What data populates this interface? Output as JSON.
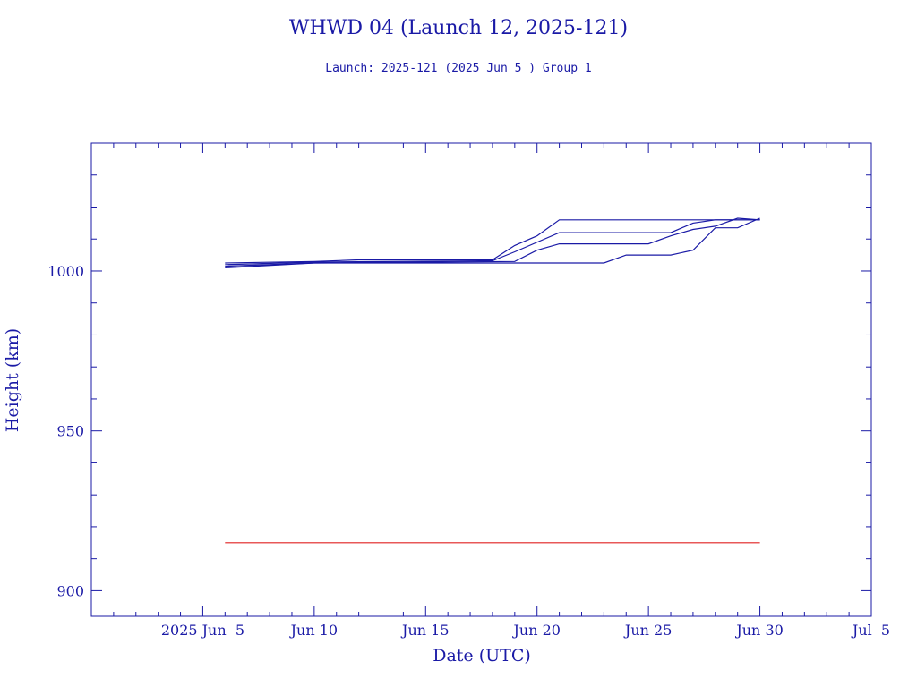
{
  "chart_data": {
    "type": "line",
    "title": "WHWD 04 (Launch 12, 2025-121)",
    "subtitle": "Launch: 2025-121  (2025 Jun  5 )  Group 1",
    "xlabel": "Date (UTC)",
    "ylabel": "Height (km)",
    "x_unit": "date (2025)",
    "xlim": [
      "2025-05-31",
      "2025-07-05"
    ],
    "ylim": [
      892,
      1040
    ],
    "x_ticks": [
      {
        "x": "2025-06-05",
        "label": "2025 Jun  5"
      },
      {
        "x": "2025-06-10",
        "label": "Jun 10"
      },
      {
        "x": "2025-06-15",
        "label": "Jun 15"
      },
      {
        "x": "2025-06-20",
        "label": "Jun 20"
      },
      {
        "x": "2025-06-25",
        "label": "Jun 25"
      },
      {
        "x": "2025-06-30",
        "label": "Jun 30"
      },
      {
        "x": "2025-07-05",
        "label": "Jul  5"
      }
    ],
    "y_ticks": [
      {
        "y": 900,
        "label": "900"
      },
      {
        "y": 950,
        "label": "950"
      },
      {
        "y": 1000,
        "label": "1000"
      }
    ],
    "grid": false,
    "series": [
      {
        "color": "#1a1aa6",
        "points": [
          [
            "2025-06-06",
            1002.5
          ],
          [
            "2025-06-10",
            1003.0
          ],
          [
            "2025-06-12",
            1003.5
          ],
          [
            "2025-06-18",
            1003.5
          ],
          [
            "2025-06-19",
            1008.0
          ],
          [
            "2025-06-20",
            1011.0
          ],
          [
            "2025-06-21",
            1016.0
          ],
          [
            "2025-06-29",
            1016.0
          ],
          [
            "2025-06-30",
            1016.0
          ]
        ]
      },
      {
        "color": "#1a1aa6",
        "points": [
          [
            "2025-06-06",
            1002.0
          ],
          [
            "2025-06-10",
            1002.8
          ],
          [
            "2025-06-18",
            1003.2
          ],
          [
            "2025-06-19",
            1006.0
          ],
          [
            "2025-06-21",
            1012.0
          ],
          [
            "2025-06-26",
            1012.0
          ],
          [
            "2025-06-27",
            1015.0
          ],
          [
            "2025-06-28",
            1016.0
          ],
          [
            "2025-06-30",
            1016.0
          ]
        ]
      },
      {
        "color": "#1a1aa6",
        "points": [
          [
            "2025-06-06",
            1001.5
          ],
          [
            "2025-06-10",
            1002.5
          ],
          [
            "2025-06-19",
            1003.0
          ],
          [
            "2025-06-20",
            1006.5
          ],
          [
            "2025-06-21",
            1008.5
          ],
          [
            "2025-06-25",
            1008.5
          ],
          [
            "2025-06-26",
            1011.0
          ],
          [
            "2025-06-27",
            1013.0
          ],
          [
            "2025-06-28",
            1014.0
          ],
          [
            "2025-06-29",
            1016.5
          ],
          [
            "2025-06-30",
            1016.0
          ]
        ]
      },
      {
        "color": "#1a1aa6",
        "points": [
          [
            "2025-06-06",
            1001.0
          ],
          [
            "2025-06-10",
            1002.5
          ],
          [
            "2025-06-22",
            1002.5
          ],
          [
            "2025-06-23",
            1002.5
          ],
          [
            "2025-06-24",
            1005.0
          ],
          [
            "2025-06-26",
            1005.0
          ],
          [
            "2025-06-27",
            1006.5
          ],
          [
            "2025-06-28",
            1013.5
          ],
          [
            "2025-06-29",
            1013.5
          ],
          [
            "2025-06-30",
            1016.5
          ]
        ]
      },
      {
        "color": "#e02020",
        "points": [
          [
            "2025-06-06",
            915.0
          ],
          [
            "2025-06-30",
            915.0
          ]
        ]
      }
    ]
  }
}
